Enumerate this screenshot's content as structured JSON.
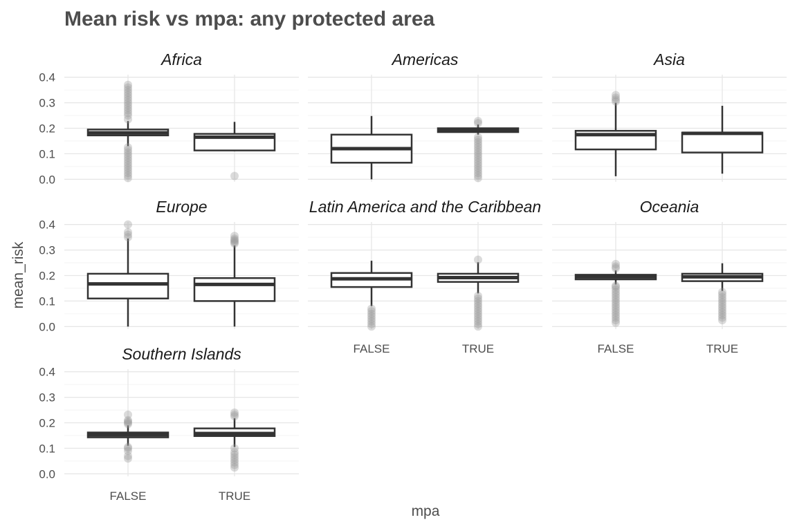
{
  "chart_data": {
    "type": "boxplot",
    "title": "Mean risk vs mpa: any protected area",
    "xlabel": "mpa",
    "ylabel": "mean_risk",
    "categories": [
      "FALSE",
      "TRUE"
    ],
    "y_ticks": [
      "0.0",
      "0.1",
      "0.2",
      "0.3",
      "0.4"
    ],
    "ylim": [
      -0.01,
      0.41
    ],
    "facet_layout": {
      "columns": 3,
      "rows": 3
    },
    "grid": true,
    "panels": [
      {
        "name": "Africa",
        "boxes": [
          {
            "category": "FALSE",
            "lower": 0.13,
            "q1": 0.172,
            "median": 0.182,
            "q3": 0.195,
            "upper": 0.228,
            "outliers_high": [
              0.235,
              0.25,
              0.26,
              0.27,
              0.28,
              0.29,
              0.3,
              0.31,
              0.32,
              0.33,
              0.34,
              0.35,
              0.36,
              0.37
            ],
            "outliers_low": [
              0.005,
              0.015,
              0.025,
              0.035,
              0.045,
              0.055,
              0.065,
              0.075,
              0.085,
              0.095,
              0.105,
              0.115,
              0.125
            ]
          },
          {
            "category": "TRUE",
            "lower": 0.11,
            "q1": 0.113,
            "median": 0.165,
            "q3": 0.178,
            "upper": 0.225,
            "outliers_high": [],
            "outliers_low": [
              0.013
            ]
          }
        ]
      },
      {
        "name": "Americas",
        "boxes": [
          {
            "category": "FALSE",
            "lower": 0.0,
            "q1": 0.065,
            "median": 0.12,
            "q3": 0.175,
            "upper": 0.248,
            "outliers_high": [],
            "outliers_low": []
          },
          {
            "category": "TRUE",
            "lower": 0.175,
            "q1": 0.185,
            "median": 0.192,
            "q3": 0.2,
            "upper": 0.215,
            "outliers_high": [
              0.22,
              0.228
            ],
            "outliers_low": [
              0.005,
              0.015,
              0.025,
              0.035,
              0.045,
              0.055,
              0.065,
              0.075,
              0.085,
              0.095,
              0.105,
              0.115,
              0.125,
              0.135,
              0.145,
              0.155,
              0.165
            ]
          }
        ]
      },
      {
        "name": "Asia",
        "boxes": [
          {
            "category": "FALSE",
            "lower": 0.012,
            "q1": 0.117,
            "median": 0.175,
            "q3": 0.19,
            "upper": 0.3,
            "outliers_high": [
              0.305,
              0.312,
              0.32,
              0.33
            ],
            "outliers_low": []
          },
          {
            "category": "TRUE",
            "lower": 0.022,
            "q1": 0.105,
            "median": 0.18,
            "q3": 0.183,
            "upper": 0.288,
            "outliers_high": [],
            "outliers_low": []
          }
        ]
      },
      {
        "name": "Europe",
        "boxes": [
          {
            "category": "FALSE",
            "lower": 0.0,
            "q1": 0.11,
            "median": 0.167,
            "q3": 0.207,
            "upper": 0.345,
            "outliers_high": [
              0.35,
              0.36,
              0.37,
              0.4
            ],
            "outliers_low": []
          },
          {
            "category": "TRUE",
            "lower": 0.0,
            "q1": 0.1,
            "median": 0.165,
            "q3": 0.19,
            "upper": 0.318,
            "outliers_high": [
              0.325,
              0.33,
              0.335,
              0.34,
              0.345,
              0.355
            ],
            "outliers_low": []
          }
        ]
      },
      {
        "name": "Latin America and the Caribbean",
        "boxes": [
          {
            "category": "FALSE",
            "lower": 0.08,
            "q1": 0.155,
            "median": 0.187,
            "q3": 0.21,
            "upper": 0.258,
            "outliers_high": [],
            "outliers_low": [
              0.0,
              0.01,
              0.02,
              0.03,
              0.04,
              0.05,
              0.06,
              0.07
            ]
          },
          {
            "category": "TRUE",
            "lower": 0.13,
            "q1": 0.175,
            "median": 0.192,
            "q3": 0.207,
            "upper": 0.252,
            "outliers_high": [
              0.262
            ],
            "outliers_low": [
              0.0,
              0.01,
              0.02,
              0.03,
              0.04,
              0.05,
              0.06,
              0.07,
              0.08,
              0.09,
              0.1,
              0.11,
              0.12
            ]
          }
        ]
      },
      {
        "name": "Oceania",
        "boxes": [
          {
            "category": "FALSE",
            "lower": 0.165,
            "q1": 0.185,
            "median": 0.195,
            "q3": 0.203,
            "upper": 0.22,
            "outliers_high": [
              0.228,
              0.235,
              0.245
            ],
            "outliers_low": [
              0.015,
              0.025,
              0.035,
              0.045,
              0.055,
              0.065,
              0.075,
              0.085,
              0.095,
              0.105,
              0.115,
              0.125,
              0.135,
              0.145,
              0.155,
              0.16
            ]
          },
          {
            "category": "TRUE",
            "lower": 0.14,
            "q1": 0.178,
            "median": 0.195,
            "q3": 0.207,
            "upper": 0.248,
            "outliers_high": [],
            "outliers_low": [
              0.025,
              0.035,
              0.045,
              0.055,
              0.065,
              0.075,
              0.085,
              0.095,
              0.105,
              0.115,
              0.125,
              0.135
            ]
          }
        ]
      },
      {
        "name": "Southern Islands",
        "boxes": [
          {
            "category": "FALSE",
            "lower": 0.11,
            "q1": 0.143,
            "median": 0.153,
            "q3": 0.162,
            "upper": 0.19,
            "outliers_high": [
              0.195,
              0.2,
              0.205,
              0.21,
              0.232
            ],
            "outliers_low": [
              0.06,
              0.07,
              0.09,
              0.1,
              0.105
            ]
          },
          {
            "category": "TRUE",
            "lower": 0.105,
            "q1": 0.148,
            "median": 0.158,
            "q3": 0.178,
            "upper": 0.218,
            "outliers_high": [
              0.225,
              0.232,
              0.24
            ],
            "outliers_low": [
              0.025,
              0.035,
              0.045,
              0.055,
              0.065,
              0.075,
              0.085,
              0.1
            ]
          }
        ]
      }
    ]
  }
}
